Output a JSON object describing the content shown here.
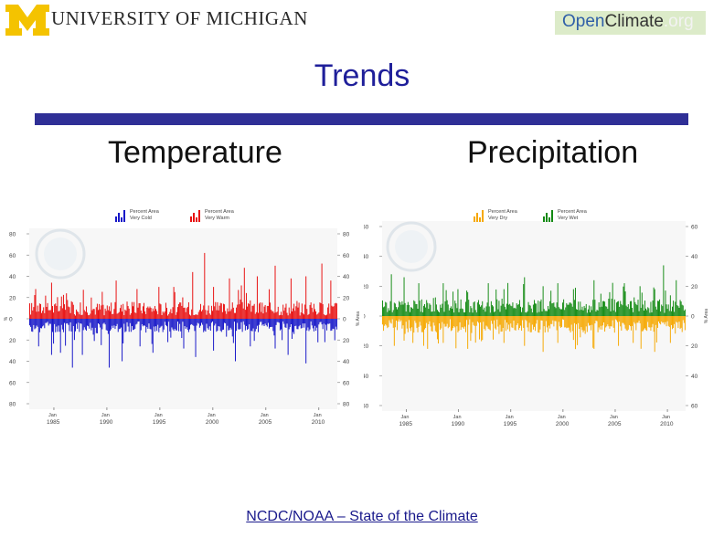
{
  "header": {
    "university_initial": "M",
    "university_name": "UNIVERSITY OF MICHIGAN",
    "brand": {
      "open": "Open",
      "climate": "Climate",
      "tld": ".org"
    }
  },
  "slide": {
    "title": "Trends",
    "left_heading": "Temperature",
    "right_heading": "Precipitation"
  },
  "colors": {
    "title": "#1f1f9a",
    "rule": "#2f2f96",
    "very_cold": "#1616c8",
    "very_warm": "#e81010",
    "very_dry": "#f6a800",
    "very_wet": "#138a13"
  },
  "chart_data": [
    {
      "type": "bar",
      "title": "Temperature",
      "legend": [
        "Percent Area Very Cold",
        "Percent Area Very Warm"
      ],
      "legend_colors": [
        "#1616c8",
        "#e81010"
      ],
      "ylabel_left": "%",
      "ylabel_right": "% Area",
      "ylim": [
        -80,
        80
      ],
      "yticks": [
        80,
        60,
        40,
        20,
        0,
        20,
        40,
        60,
        80
      ],
      "xticks": [
        {
          "month": "Jan",
          "year": "1985"
        },
        {
          "month": "Jan",
          "year": "1990"
        },
        {
          "month": "Jan",
          "year": "1995"
        },
        {
          "month": "Jan",
          "year": "2000"
        },
        {
          "month": "Jan",
          "year": "2005"
        },
        {
          "month": "Jan",
          "year": "2010"
        }
      ],
      "series": [
        {
          "name": "Very Warm",
          "direction": "up",
          "typical": 10,
          "peaks": [
            [
              0.02,
              28
            ],
            [
              0.07,
              34
            ],
            [
              0.12,
              24
            ],
            [
              0.2,
              20
            ],
            [
              0.28,
              36
            ],
            [
              0.35,
              28
            ],
            [
              0.42,
              30
            ],
            [
              0.47,
              30
            ],
            [
              0.53,
              44
            ],
            [
              0.57,
              62
            ],
            [
              0.6,
              30
            ],
            [
              0.65,
              38
            ],
            [
              0.7,
              48
            ],
            [
              0.74,
              40
            ],
            [
              0.8,
              50
            ],
            [
              0.85,
              38
            ],
            [
              0.9,
              40
            ],
            [
              0.95,
              52
            ],
            [
              0.98,
              36
            ]
          ]
        },
        {
          "name": "Very Cold",
          "direction": "down",
          "typical": 8,
          "peaks": [
            [
              0.03,
              26
            ],
            [
              0.07,
              34
            ],
            [
              0.1,
              32
            ],
            [
              0.14,
              46
            ],
            [
              0.17,
              34
            ],
            [
              0.26,
              46
            ],
            [
              0.3,
              40
            ],
            [
              0.36,
              26
            ],
            [
              0.4,
              32
            ],
            [
              0.45,
              22
            ],
            [
              0.5,
              28
            ],
            [
              0.54,
              36
            ],
            [
              0.6,
              30
            ],
            [
              0.67,
              40
            ],
            [
              0.72,
              26
            ],
            [
              0.8,
              28
            ],
            [
              0.84,
              34
            ],
            [
              0.9,
              42
            ],
            [
              0.96,
              22
            ]
          ]
        }
      ]
    },
    {
      "type": "bar",
      "title": "Precipitation",
      "legend": [
        "Percent Area Very Dry",
        "Percent Area Very Wet"
      ],
      "legend_colors": [
        "#f6a800",
        "#138a13"
      ],
      "ylabel_left": "",
      "ylabel_right": "% Area",
      "ylim": [
        -60,
        60
      ],
      "yticks": [
        60,
        40,
        20,
        0,
        20,
        40,
        60
      ],
      "xticks": [
        {
          "month": "Jan",
          "year": "1985"
        },
        {
          "month": "Jan",
          "year": "1990"
        },
        {
          "month": "Jan",
          "year": "1995"
        },
        {
          "month": "Jan",
          "year": "2000"
        },
        {
          "month": "Jan",
          "year": "2005"
        },
        {
          "month": "Jan",
          "year": "2010"
        }
      ],
      "series": [
        {
          "name": "Very Wet",
          "direction": "up",
          "typical": 7,
          "peaks": [
            [
              0.03,
              28
            ],
            [
              0.07,
              26
            ],
            [
              0.12,
              22
            ],
            [
              0.2,
              22
            ],
            [
              0.28,
              16
            ],
            [
              0.35,
              22
            ],
            [
              0.4,
              18
            ],
            [
              0.47,
              26
            ],
            [
              0.53,
              20
            ],
            [
              0.58,
              22
            ],
            [
              0.63,
              18
            ],
            [
              0.7,
              24
            ],
            [
              0.75,
              16
            ],
            [
              0.8,
              22
            ],
            [
              0.85,
              20
            ],
            [
              0.9,
              18
            ],
            [
              0.93,
              34
            ],
            [
              0.97,
              24
            ]
          ]
        },
        {
          "name": "Very Dry",
          "direction": "down",
          "typical": 7,
          "peaks": [
            [
              0.04,
              20
            ],
            [
              0.1,
              18
            ],
            [
              0.15,
              22
            ],
            [
              0.2,
              18
            ],
            [
              0.28,
              22
            ],
            [
              0.33,
              16
            ],
            [
              0.4,
              18
            ],
            [
              0.47,
              20
            ],
            [
              0.53,
              24
            ],
            [
              0.58,
              18
            ],
            [
              0.63,
              16
            ],
            [
              0.7,
              22
            ],
            [
              0.78,
              20
            ],
            [
              0.83,
              18
            ],
            [
              0.9,
              24
            ],
            [
              0.95,
              18
            ]
          ]
        }
      ]
    }
  ],
  "footer": {
    "source_link": "NCDC/NOAA – State of the Climate"
  }
}
